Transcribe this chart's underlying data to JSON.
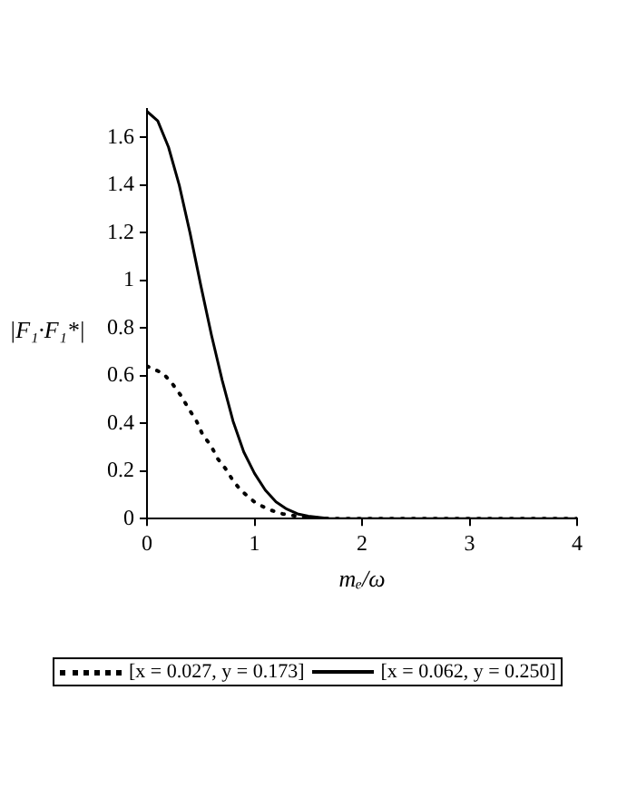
{
  "chart_data": {
    "type": "line",
    "xlabel": "mₑ/ω",
    "ylabel": "|F₁·F₁*|",
    "xlim": [
      0,
      4
    ],
    "ylim": [
      0,
      1.72
    ],
    "xticks": [
      0,
      1,
      2,
      3,
      4
    ],
    "yticks": [
      0,
      0.2,
      0.4,
      0.6,
      0.8,
      1,
      1.2,
      1.4,
      1.6
    ],
    "grid": false,
    "legend": "bottom",
    "marker": "none",
    "series": [
      {
        "name": "[x = 0.027, y = 0.173]",
        "color": "#000000",
        "line_style": "dotted",
        "x": [
          0,
          0.15,
          0.23,
          0.31,
          0.39,
          0.46,
          0.52,
          0.59,
          0.66,
          0.73,
          0.8,
          0.87,
          1.0,
          1.12,
          1.26,
          1.4,
          1.55,
          1.7,
          2,
          2.5,
          3,
          3.5,
          4
        ],
        "values": [
          0.64,
          0.61,
          0.57,
          0.52,
          0.46,
          0.41,
          0.35,
          0.31,
          0.25,
          0.21,
          0.16,
          0.12,
          0.07,
          0.04,
          0.02,
          0.01,
          0.004,
          0,
          0,
          0,
          0,
          0,
          0
        ]
      },
      {
        "name": "[x = 0.062, y = 0.250]",
        "color": "#000000",
        "line_style": "solid",
        "x": [
          0,
          0.1,
          0.2,
          0.3,
          0.4,
          0.5,
          0.6,
          0.7,
          0.8,
          0.9,
          1.0,
          1.1,
          1.2,
          1.3,
          1.4,
          1.5,
          1.7,
          2,
          3,
          4
        ],
        "values": [
          1.71,
          1.67,
          1.56,
          1.4,
          1.2,
          0.98,
          0.77,
          0.58,
          0.41,
          0.28,
          0.19,
          0.12,
          0.07,
          0.04,
          0.02,
          0.01,
          0,
          0,
          0,
          0
        ]
      }
    ]
  }
}
